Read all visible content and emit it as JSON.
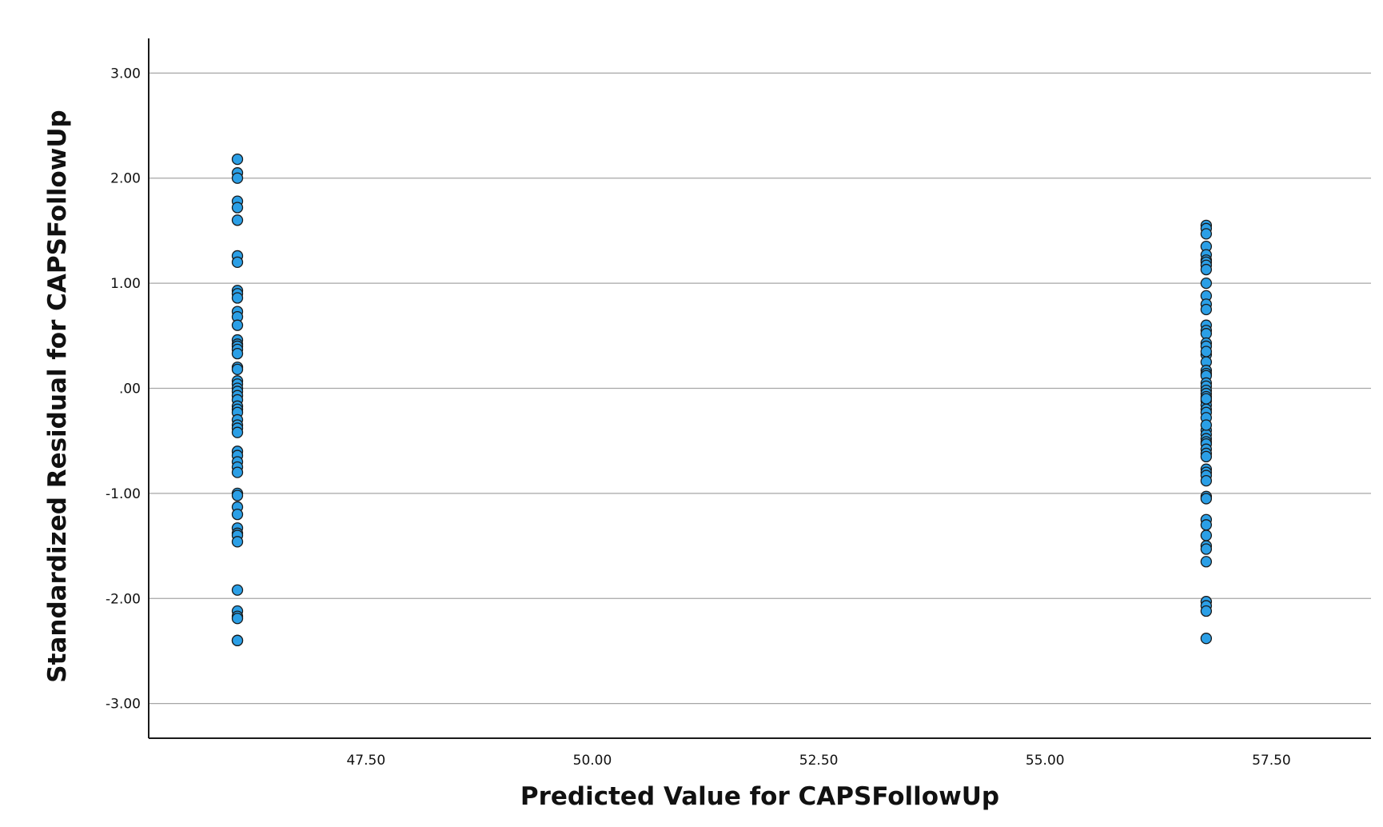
{
  "chart_data": {
    "type": "scatter",
    "title": "",
    "xlabel": "Predicted Value for CAPSFollowUp",
    "ylabel": "Standardized Residual for CAPSFollowUp",
    "xlim": [
      45.1,
      58.6
    ],
    "ylim": [
      -3.33,
      3.33
    ],
    "x_ticks": [
      47.5,
      50.0,
      52.5,
      55.0,
      57.5
    ],
    "x_tick_labels": [
      "47.50",
      "50.00",
      "52.50",
      "55.00",
      "57.50"
    ],
    "y_ticks": [
      3.0,
      2.0,
      1.0,
      0.0,
      -1.0,
      -2.0,
      -3.0
    ],
    "y_tick_labels": [
      "3.00",
      "2.00",
      "1.00",
      ".00",
      "-1.00",
      "-2.00",
      "-3.00"
    ],
    "grid": {
      "horizontal": true,
      "vertical": false
    },
    "marker_color": "#2b9fe6",
    "marker_edge_color": "#1a1a1a",
    "grid_color": "#a6a6a6",
    "axis_color": "#1a1a1a",
    "series": [
      {
        "x": [
          46.08,
          46.08,
          46.08,
          46.08,
          46.08,
          46.08,
          46.08,
          46.08,
          46.08,
          46.08,
          46.08,
          46.08,
          46.08,
          46.08,
          46.08,
          46.08,
          46.08,
          46.08,
          46.08,
          46.08,
          46.08,
          46.08,
          46.08,
          46.08,
          46.08,
          46.08,
          46.08,
          46.08,
          46.08,
          46.08,
          46.08,
          46.08,
          46.08,
          46.08,
          46.08,
          46.08,
          46.08,
          46.08,
          46.08,
          46.08,
          46.08,
          46.08,
          46.08,
          46.08,
          46.08,
          46.08,
          46.08,
          46.08,
          46.08,
          46.08,
          46.08,
          46.08,
          46.08
        ],
        "y": [
          2.18,
          2.05,
          2.0,
          1.78,
          1.72,
          1.6,
          1.26,
          1.2,
          0.93,
          0.9,
          0.86,
          0.73,
          0.68,
          0.6,
          0.46,
          0.42,
          0.4,
          0.37,
          0.33,
          0.2,
          0.18,
          0.07,
          0.04,
          0.0,
          -0.03,
          -0.07,
          -0.11,
          -0.17,
          -0.2,
          -0.23,
          -0.3,
          -0.35,
          -0.38,
          -0.42,
          -0.6,
          -0.64,
          -0.7,
          -0.75,
          -0.8,
          -1.0,
          -1.02,
          -1.13,
          -1.2,
          -1.33,
          -1.38,
          -1.4,
          -1.46,
          -1.92,
          -2.12,
          -2.17,
          -2.19,
          -2.4,
          -2.4
        ]
      },
      {
        "x": [
          56.78,
          56.78,
          56.78,
          56.78,
          56.78,
          56.78,
          56.78,
          56.78,
          56.78,
          56.78,
          56.78,
          56.78,
          56.78,
          56.78,
          56.78,
          56.78,
          56.78,
          56.78,
          56.78,
          56.78,
          56.78,
          56.78,
          56.78,
          56.78,
          56.78,
          56.78,
          56.78,
          56.78,
          56.78,
          56.78,
          56.78,
          56.78,
          56.78,
          56.78,
          56.78,
          56.78,
          56.78,
          56.78,
          56.78,
          56.78,
          56.78,
          56.78,
          56.78,
          56.78,
          56.78,
          56.78,
          56.78,
          56.78,
          56.78,
          56.78,
          56.78,
          56.78,
          56.78,
          56.78,
          56.78,
          56.78,
          56.78,
          56.78,
          56.78,
          56.78
        ],
        "y": [
          1.55,
          1.52,
          1.47,
          1.35,
          1.27,
          1.22,
          1.2,
          1.17,
          1.13,
          1.0,
          0.88,
          0.8,
          0.75,
          0.6,
          0.55,
          0.52,
          0.43,
          0.4,
          0.32,
          0.25,
          0.17,
          0.14,
          0.12,
          0.05,
          0.02,
          -0.02,
          -0.05,
          -0.08,
          -0.12,
          -0.16,
          -0.2,
          -0.23,
          -0.28,
          -0.4,
          -0.44,
          -0.48,
          -0.51,
          -0.53,
          -0.58,
          -0.62,
          -0.65,
          -0.77,
          -0.8,
          -0.83,
          -0.88,
          -1.03,
          -1.05,
          -1.25,
          -1.3,
          -1.4,
          -1.5,
          -1.53,
          -1.65,
          -2.03,
          -2.07,
          -2.12,
          -2.38,
          -0.35,
          0.35,
          -0.1
        ]
      }
    ]
  }
}
